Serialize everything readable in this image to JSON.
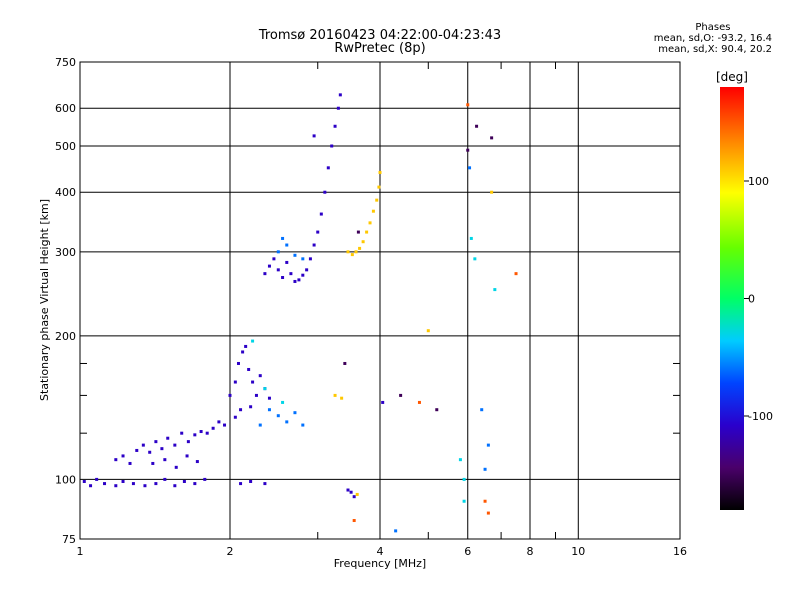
{
  "header": {
    "title": "Tromsø 20160423 04:22:00-04:23:43",
    "subtitle": "RwPretec (8p)"
  },
  "stats": {
    "heading": "Phases",
    "o_line": "mean, sd,O: -93.2, 16.4",
    "x_line": "mean, sd,X:  90.4, 20.2"
  },
  "colorbar": {
    "unit": "[deg]",
    "ticks": [
      "100",
      "0",
      "-100"
    ],
    "tick_values": [
      100,
      0,
      -100
    ],
    "range": [
      -180,
      180
    ]
  },
  "chart_data": {
    "type": "scatter",
    "title": "Tromsø 20160423 04:22:00-04:23:43",
    "subtitle": "RwPretec (8p)",
    "xlabel": "Frequency [MHz]",
    "ylabel": "Stationary phase Virtual Height [km]",
    "x_scale": "log",
    "y_scale": "log",
    "xlim": [
      1,
      16
    ],
    "ylim": [
      75,
      750
    ],
    "x_ticks": [
      1,
      2,
      4,
      6,
      8,
      10,
      16
    ],
    "x_minor_ticks": [
      3,
      5,
      7,
      9
    ],
    "y_ticks": [
      75,
      100,
      200,
      300,
      400,
      500,
      600,
      750
    ],
    "y_minor_ticks": [
      125,
      150,
      175
    ],
    "grid": true,
    "color_scale": "phase [deg], -180 to 180, rainbow",
    "series": [
      {
        "phase": -110,
        "points": [
          [
            1.02,
            99
          ],
          [
            1.05,
            97
          ],
          [
            1.08,
            100
          ],
          [
            1.12,
            98
          ],
          [
            1.18,
            97
          ],
          [
            1.22,
            99
          ],
          [
            1.28,
            98
          ],
          [
            1.35,
            97
          ],
          [
            1.42,
            98
          ],
          [
            1.48,
            100
          ],
          [
            1.55,
            97
          ],
          [
            1.62,
            99
          ],
          [
            1.7,
            98
          ],
          [
            1.78,
            100
          ],
          [
            1.18,
            110
          ],
          [
            1.22,
            112
          ],
          [
            1.26,
            108
          ],
          [
            1.3,
            115
          ],
          [
            1.34,
            118
          ],
          [
            1.38,
            114
          ],
          [
            1.42,
            120
          ],
          [
            1.46,
            116
          ],
          [
            1.5,
            122
          ],
          [
            1.55,
            118
          ],
          [
            1.6,
            125
          ],
          [
            1.65,
            120
          ],
          [
            1.7,
            124
          ],
          [
            1.75,
            126
          ],
          [
            1.8,
            125
          ],
          [
            1.85,
            128
          ],
          [
            1.9,
            132
          ],
          [
            1.95,
            130
          ],
          [
            1.4,
            108
          ],
          [
            1.48,
            110
          ],
          [
            1.56,
            106
          ],
          [
            1.64,
            112
          ],
          [
            1.72,
            109
          ],
          [
            2.0,
            150
          ],
          [
            2.05,
            160
          ],
          [
            2.08,
            175
          ],
          [
            2.12,
            185
          ],
          [
            2.15,
            190
          ],
          [
            2.18,
            170
          ],
          [
            2.22,
            160
          ],
          [
            2.26,
            150
          ],
          [
            2.3,
            165
          ],
          [
            2.35,
            155
          ],
          [
            2.4,
            148
          ],
          [
            2.05,
            135
          ],
          [
            2.1,
            140
          ],
          [
            2.2,
            142
          ],
          [
            2.1,
            98
          ],
          [
            2.2,
            99
          ],
          [
            2.35,
            98
          ],
          [
            2.35,
            270
          ],
          [
            2.4,
            280
          ],
          [
            2.45,
            290
          ],
          [
            2.5,
            275
          ],
          [
            2.55,
            265
          ],
          [
            2.6,
            285
          ],
          [
            2.65,
            270
          ],
          [
            2.7,
            260
          ],
          [
            2.75,
            262
          ],
          [
            2.8,
            268
          ],
          [
            2.85,
            275
          ],
          [
            2.9,
            290
          ],
          [
            2.95,
            310
          ],
          [
            3.0,
            330
          ],
          [
            3.05,
            360
          ],
          [
            3.1,
            400
          ],
          [
            3.15,
            450
          ],
          [
            3.2,
            500
          ],
          [
            3.25,
            550
          ],
          [
            3.3,
            600
          ],
          [
            3.33,
            640
          ],
          [
            3.45,
            95
          ],
          [
            3.55,
            92
          ],
          [
            3.5,
            94
          ],
          [
            2.95,
            525
          ],
          [
            4.05,
            145
          ]
        ]
      },
      {
        "phase": -60,
        "points": [
          [
            2.5,
            300
          ],
          [
            2.55,
            320
          ],
          [
            2.6,
            310
          ],
          [
            2.7,
            295
          ],
          [
            2.8,
            290
          ],
          [
            2.3,
            130
          ],
          [
            2.4,
            140
          ],
          [
            2.5,
            136
          ],
          [
            2.6,
            132
          ],
          [
            2.7,
            138
          ],
          [
            2.8,
            130
          ],
          [
            6.4,
            140
          ],
          [
            6.6,
            118
          ],
          [
            6.5,
            105
          ],
          [
            4.3,
            78
          ],
          [
            6.05,
            450
          ]
        ]
      },
      {
        "phase": -30,
        "points": [
          [
            2.22,
            195
          ],
          [
            2.35,
            155
          ],
          [
            2.55,
            145
          ],
          [
            6.1,
            320
          ],
          [
            6.8,
            250
          ],
          [
            6.2,
            290
          ],
          [
            5.9,
            100
          ],
          [
            5.8,
            110
          ],
          [
            5.9,
            90
          ]
        ]
      },
      {
        "phase": 110,
        "points": [
          [
            3.45,
            300
          ],
          [
            3.52,
            296
          ],
          [
            3.58,
            300
          ],
          [
            3.64,
            305
          ],
          [
            3.7,
            315
          ],
          [
            3.76,
            330
          ],
          [
            3.82,
            345
          ],
          [
            3.88,
            365
          ],
          [
            3.94,
            385
          ],
          [
            3.98,
            410
          ],
          [
            4.0,
            440
          ],
          [
            3.25,
            150
          ],
          [
            3.35,
            148
          ],
          [
            3.6,
            93
          ],
          [
            5.0,
            205
          ],
          [
            6.7,
            400
          ]
        ]
      },
      {
        "phase": 150,
        "points": [
          [
            6.0,
            610
          ],
          [
            6.5,
            90
          ],
          [
            6.6,
            85
          ],
          [
            7.5,
            270
          ],
          [
            4.8,
            145
          ],
          [
            3.55,
            82
          ]
        ]
      },
      {
        "phase": -150,
        "points": [
          [
            6.25,
            550
          ],
          [
            6.7,
            520
          ],
          [
            3.62,
            330
          ],
          [
            5.2,
            140
          ],
          [
            3.4,
            175
          ],
          [
            4.4,
            150
          ],
          [
            6.0,
            490
          ]
        ]
      }
    ]
  }
}
